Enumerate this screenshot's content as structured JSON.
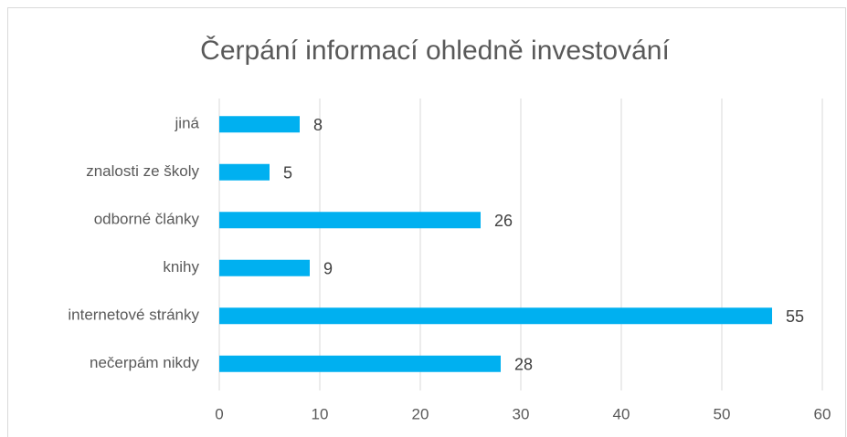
{
  "chart_data": {
    "type": "bar",
    "orientation": "horizontal",
    "title": "Čerpání informací ohledně investování",
    "categories": [
      "jiná",
      "znalosti ze školy",
      "odborné články",
      "knihy",
      "internetové stránky",
      "nečerpám nikdy"
    ],
    "values": [
      8,
      5,
      26,
      9,
      55,
      28
    ],
    "color": "#00b0f0",
    "xlim": [
      0,
      60
    ],
    "xticks": [
      0,
      10,
      20,
      30,
      40,
      50,
      60
    ],
    "grid": true
  }
}
